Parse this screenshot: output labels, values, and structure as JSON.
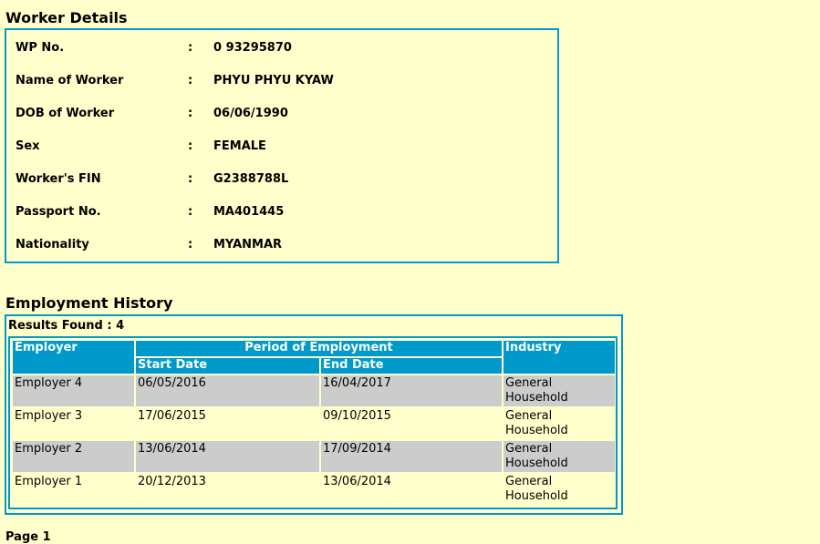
{
  "worker_details": {
    "title": "Worker Details",
    "fields": [
      {
        "label": "WP No.",
        "value": "0 93295870"
      },
      {
        "label": "Name of Worker",
        "value": "PHYU PHYU KYAW"
      },
      {
        "label": "DOB of Worker",
        "value": "06/06/1990"
      },
      {
        "label": "Sex",
        "value": "FEMALE"
      },
      {
        "label": "Worker's FIN",
        "value": "G2388788L"
      },
      {
        "label": "Passport No.",
        "value": "MA401445"
      },
      {
        "label": "Nationality",
        "value": "MYANMAR"
      }
    ],
    "separator": ":"
  },
  "employment_history": {
    "title": "Employment History",
    "results_found": "Results Found : 4",
    "headers": {
      "employer": "Employer",
      "period": "Period of Employment",
      "start": "Start Date",
      "end": "End Date",
      "industry": "Industry"
    },
    "rows": [
      {
        "employer": "Employer 4",
        "start": "06/05/2016",
        "end": "16/04/2017",
        "industry": "General Household"
      },
      {
        "employer": "Employer 3",
        "start": "17/06/2015",
        "end": "09/10/2015",
        "industry": "General Household"
      },
      {
        "employer": "Employer 2",
        "start": "13/06/2014",
        "end": "17/09/2014",
        "industry": "General Household"
      },
      {
        "employer": "Employer 1",
        "start": "20/12/2013",
        "end": "13/06/2014",
        "industry": "General Household"
      }
    ]
  },
  "page_label": "Page 1",
  "colors": {
    "background": "#ffffcc",
    "accent": "#0099cc",
    "alt_row": "#cccccc"
  }
}
